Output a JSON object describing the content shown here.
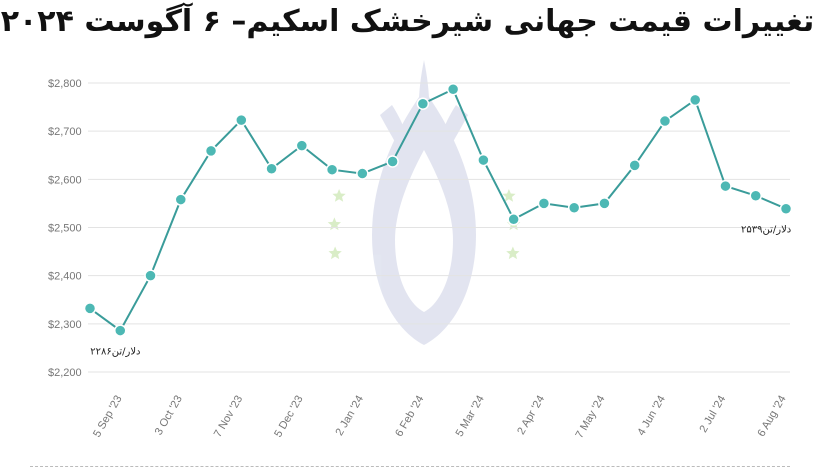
{
  "title": "تغییرات قیمت جهانی شیرخشک اسکیم– ۶ آگوست ۲۰۲۴",
  "chart_data": {
    "type": "line",
    "title": "تغییرات قیمت جهانی شیرخشک اسکیم– ۶ آگوست ۲۰۲۴",
    "xlabel": "",
    "ylabel": "",
    "ylim": [
      2200,
      2800
    ],
    "yticks": [
      2200,
      2300,
      2400,
      2500,
      2600,
      2700,
      2800
    ],
    "ytick_labels": [
      "$2,200",
      "$2,300",
      "$2,400",
      "$2,500",
      "$2,600",
      "$2,700",
      "$2,800"
    ],
    "xtick_labels": [
      "5 Sep '23",
      "3 Oct '23",
      "7 Nov '23",
      "5 Dec '23",
      "2 Jan '24",
      "6 Feb '24",
      "5 Mar '24",
      "2 Apr '24",
      "7 May '24",
      "4 Jun '24",
      "2 Jul '24",
      "6 Aug '24"
    ],
    "grid": true,
    "line_color": "#3a9c9a",
    "marker_color": "#4db8b4",
    "series": [
      {
        "values": [
          2332,
          2286,
          2400,
          2558,
          2659,
          2723,
          2622,
          2670,
          2620,
          2612,
          2637,
          2757,
          2787,
          2640,
          2517,
          2550,
          2541,
          2550,
          2629,
          2721,
          2765,
          2586,
          2566,
          2539
        ]
      }
    ],
    "annotations": [
      {
        "text": "۲۲۸۶دلار/تن",
        "point_index": 1
      },
      {
        "text": "۲۵۳۹دلار/تن",
        "point_index": 23
      }
    ]
  }
}
